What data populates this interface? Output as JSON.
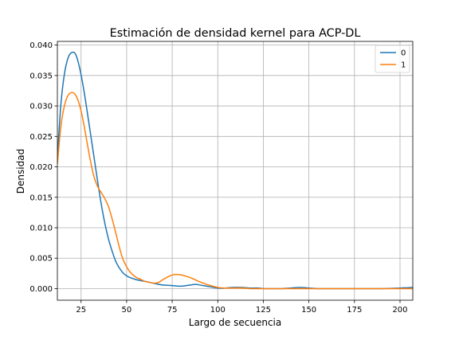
{
  "chart_data": {
    "type": "line",
    "title": "Estimación de densidad kernel para ACP-DL",
    "xlabel": "Largo de secuencia",
    "ylabel": "Densidad",
    "xlim": [
      12,
      207
    ],
    "ylim": [
      -0.0019,
      0.0406
    ],
    "xticks": [
      "25",
      "50",
      "75",
      "100",
      "125",
      "150",
      "175",
      "200"
    ],
    "xtick_values": [
      25,
      50,
      75,
      100,
      125,
      150,
      175,
      200
    ],
    "yticks": [
      "0.000",
      "0.005",
      "0.010",
      "0.015",
      "0.020",
      "0.025",
      "0.030",
      "0.035",
      "0.040"
    ],
    "ytick_values": [
      0,
      0.005,
      0.01,
      0.015,
      0.02,
      0.025,
      0.03,
      0.035,
      0.04
    ],
    "grid": true,
    "legend_position": "top-right",
    "series": [
      {
        "name": "0",
        "color": "#1f77b4",
        "x": [
          12,
          14,
          16,
          18,
          20,
          22,
          24,
          26,
          28,
          30,
          32,
          34,
          36,
          38,
          40,
          42,
          44,
          46,
          48,
          50,
          52,
          55,
          58,
          60,
          63,
          66,
          70,
          75,
          80,
          85,
          88,
          92,
          96,
          100,
          104,
          108,
          113,
          118,
          122,
          126,
          130,
          135,
          140,
          145,
          150,
          155,
          160,
          170,
          180,
          190,
          200,
          207
        ],
        "y": [
          0.0215,
          0.0305,
          0.0355,
          0.038,
          0.0388,
          0.0385,
          0.0365,
          0.0335,
          0.0298,
          0.0258,
          0.0218,
          0.0178,
          0.014,
          0.0108,
          0.0082,
          0.0062,
          0.0045,
          0.0034,
          0.0026,
          0.0021,
          0.0018,
          0.0015,
          0.0013,
          0.0012,
          0.001,
          0.0008,
          0.0006,
          0.0005,
          0.0004,
          0.0006,
          0.0007,
          0.0005,
          0.0003,
          0.0001,
          0.0001,
          0.0002,
          0.0002,
          0.0001,
          0.0001,
          0.0,
          0.0,
          0.0,
          0.0001,
          0.0002,
          0.0001,
          0.0,
          0.0,
          0.0,
          0.0,
          0.0,
          0.0001,
          0.0002
        ]
      },
      {
        "name": "1",
        "color": "#ff7f0e",
        "x": [
          12,
          14,
          16,
          18,
          20,
          22,
          24,
          26,
          28,
          30,
          32,
          34,
          36,
          38,
          40,
          42,
          44,
          46,
          48,
          50,
          52,
          55,
          58,
          60,
          63,
          66,
          68,
          70,
          73,
          76,
          79,
          82,
          85,
          88,
          92,
          96,
          100,
          104,
          108,
          113,
          118,
          125,
          130,
          135,
          140,
          150,
          160,
          180,
          200,
          207
        ],
        "y": [
          0.0205,
          0.0268,
          0.0302,
          0.0318,
          0.0322,
          0.0318,
          0.0303,
          0.0278,
          0.0245,
          0.0212,
          0.0185,
          0.0168,
          0.0158,
          0.0148,
          0.0135,
          0.0115,
          0.0092,
          0.0068,
          0.0048,
          0.0036,
          0.0027,
          0.0019,
          0.0015,
          0.0012,
          0.001,
          0.0009,
          0.0011,
          0.0015,
          0.002,
          0.0023,
          0.0023,
          0.0021,
          0.0018,
          0.0014,
          0.0009,
          0.0005,
          0.0002,
          0.0001,
          0.0001,
          0.0001,
          0.0,
          0.0,
          0.0,
          0.0,
          0.0,
          0.0,
          0.0,
          0.0,
          0.0,
          0.0
        ]
      }
    ]
  }
}
